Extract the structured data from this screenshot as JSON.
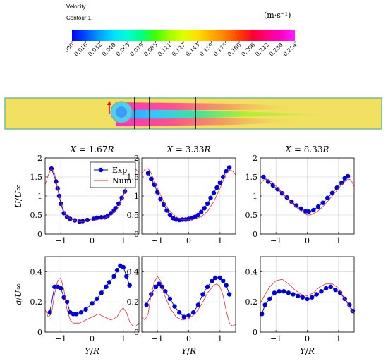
{
  "legend_box": {
    "title": "Velocity",
    "subtitle": "Contour 1",
    "unit": "(m·s⁻¹)",
    "colors": [
      "#0000ff",
      "#0050ff",
      "#00a0ff",
      "#00e0ff",
      "#00ffd0",
      "#00ff80",
      "#40ff00",
      "#a0ff00",
      "#e0ff00",
      "#ffe000",
      "#ffb000",
      "#ff8000",
      "#ff4000",
      "#ff0030",
      "#ff0080",
      "#ff00c0",
      "#ff20ff"
    ],
    "ticks": [
      "0.000",
      "0.016",
      "0.032",
      "0.048",
      "0.063",
      "0.079",
      "0.095",
      "0.111",
      "0.127",
      "0.143",
      "0.159",
      "0.175",
      "0.190",
      "0.206",
      "0.222",
      "0.238",
      "0.254"
    ]
  },
  "chart_data": [
    {
      "type": "line",
      "title": "X = 1.67R",
      "xlabel": "",
      "ylabel": "U/U∞",
      "xlim": [
        -1.5,
        1.5
      ],
      "ylim": [
        0,
        2
      ],
      "xticks": [
        -1,
        0,
        1
      ],
      "yticks": [
        0,
        0.5,
        1,
        1.5,
        2
      ],
      "grid": true,
      "legend": {
        "position": "top-right",
        "entries": [
          "Exp",
          "Num"
        ]
      },
      "series": [
        {
          "name": "Exp",
          "marker": "circle",
          "color": "#0000dd",
          "x": [
            -1.3,
            -1.15,
            -1.1,
            -1.05,
            -1.0,
            -0.9,
            -0.8,
            -0.7,
            -0.55,
            -0.4,
            -0.3,
            -0.15,
            0.05,
            0.15,
            0.3,
            0.4,
            0.5,
            0.6,
            0.7,
            0.75,
            0.85,
            0.95,
            1.05,
            1.1,
            1.15
          ],
          "y": [
            1.72,
            1.38,
            1.2,
            1.0,
            0.8,
            0.55,
            0.45,
            0.4,
            0.36,
            0.33,
            0.34,
            0.37,
            0.4,
            0.43,
            0.44,
            0.44,
            0.48,
            0.55,
            0.62,
            0.68,
            0.8,
            0.95,
            1.12,
            1.3,
            1.42
          ]
        },
        {
          "name": "Num",
          "color": "#e03030",
          "x": [
            -1.5,
            -1.4,
            -1.3,
            -1.2,
            -1.1,
            -1.0,
            -0.9,
            -0.8,
            -0.6,
            -0.4,
            -0.2,
            0,
            0.2,
            0.4,
            0.6,
            0.8,
            0.9,
            1.0,
            1.1,
            1.2,
            1.3,
            1.4,
            1.5
          ],
          "y": [
            1.3,
            1.55,
            1.72,
            1.6,
            1.2,
            0.85,
            0.6,
            0.45,
            0.37,
            0.33,
            0.33,
            0.35,
            0.38,
            0.42,
            0.5,
            0.65,
            0.8,
            1.0,
            1.25,
            1.5,
            1.67,
            1.7,
            1.62
          ]
        }
      ]
    },
    {
      "type": "line",
      "title": "X = 3.33R",
      "xlabel": "",
      "ylabel": "",
      "xlim": [
        -1.5,
        1.5
      ],
      "ylim": [
        0,
        2
      ],
      "xticks": [
        -1,
        0,
        1
      ],
      "yticks": [
        0,
        0.5,
        1,
        1.5,
        2
      ],
      "grid": true,
      "series": [
        {
          "name": "Exp",
          "marker": "circle",
          "color": "#0000dd",
          "x": [
            -1.3,
            -1.2,
            -1.1,
            -1.0,
            -0.9,
            -0.8,
            -0.7,
            -0.6,
            -0.5,
            -0.4,
            -0.3,
            -0.2,
            -0.1,
            0,
            0.1,
            0.2,
            0.3,
            0.4,
            0.5,
            0.6,
            0.7,
            0.8,
            0.9,
            1.0,
            1.1,
            1.2,
            1.3
          ],
          "y": [
            1.6,
            1.45,
            1.3,
            1.1,
            0.92,
            0.78,
            0.62,
            0.5,
            0.42,
            0.38,
            0.37,
            0.38,
            0.38,
            0.4,
            0.42,
            0.45,
            0.5,
            0.58,
            0.68,
            0.8,
            0.95,
            1.08,
            1.22,
            1.35,
            1.5,
            1.65,
            1.75
          ]
        },
        {
          "name": "Num",
          "color": "#e03030",
          "x": [
            -1.5,
            -1.4,
            -1.3,
            -1.2,
            -1.1,
            -1.0,
            -0.8,
            -0.6,
            -0.4,
            -0.2,
            0,
            0.2,
            0.4,
            0.6,
            0.8,
            1.0,
            1.1,
            1.2,
            1.3,
            1.4,
            1.5
          ],
          "y": [
            1.6,
            1.7,
            1.72,
            1.6,
            1.4,
            1.2,
            0.85,
            0.6,
            0.45,
            0.38,
            0.37,
            0.4,
            0.45,
            0.6,
            0.85,
            1.2,
            1.4,
            1.58,
            1.68,
            1.66,
            1.55
          ]
        }
      ]
    },
    {
      "type": "line",
      "title": "X = 8.33R",
      "xlabel": "",
      "ylabel": "",
      "xlim": [
        -1.5,
        1.5
      ],
      "ylim": [
        0,
        2
      ],
      "xticks": [
        -1,
        0,
        1
      ],
      "yticks": [
        0,
        0.5,
        1,
        1.5,
        2
      ],
      "grid": true,
      "series": [
        {
          "name": "Exp",
          "marker": "circle",
          "color": "#0000dd",
          "x": [
            -1.4,
            -1.25,
            -1.1,
            -0.95,
            -0.8,
            -0.65,
            -0.5,
            -0.35,
            -0.2,
            -0.05,
            0.05,
            0.2,
            0.35,
            0.5,
            0.65,
            0.8,
            0.95,
            1.1,
            1.2,
            1.3
          ],
          "y": [
            1.5,
            1.38,
            1.28,
            1.18,
            1.07,
            0.96,
            0.85,
            0.75,
            0.67,
            0.6,
            0.59,
            0.63,
            0.72,
            0.82,
            0.95,
            1.08,
            1.22,
            1.35,
            1.47,
            1.52
          ]
        },
        {
          "name": "Num",
          "color": "#e03030",
          "x": [
            -1.5,
            -1.4,
            -1.3,
            -1.1,
            -0.9,
            -0.7,
            -0.5,
            -0.3,
            -0.1,
            0,
            0.1,
            0.3,
            0.5,
            0.7,
            0.9,
            1.1,
            1.3,
            1.4,
            1.5
          ],
          "y": [
            1.32,
            1.42,
            1.45,
            1.35,
            1.18,
            1.0,
            0.82,
            0.67,
            0.55,
            0.5,
            0.5,
            0.58,
            0.72,
            0.9,
            1.1,
            1.3,
            1.45,
            1.42,
            1.25
          ]
        }
      ]
    },
    {
      "type": "line",
      "title": "",
      "xlabel": "Y/R",
      "ylabel": "q/U∞",
      "xlim": [
        -1.5,
        1.5
      ],
      "ylim": [
        0,
        0.5
      ],
      "xticks": [
        -1,
        0,
        1
      ],
      "yticks": [
        0,
        0.2,
        0.4
      ],
      "grid": true,
      "series": [
        {
          "name": "Exp",
          "marker": "circle",
          "color": "#0000dd",
          "x": [
            -1.35,
            -1.2,
            -1.1,
            -1.0,
            -0.9,
            -0.8,
            -0.7,
            -0.6,
            -0.5,
            -0.35,
            -0.2,
            0,
            0.15,
            0.3,
            0.45,
            0.55,
            0.7,
            0.8,
            0.9,
            1.0,
            1.1,
            1.2
          ],
          "y": [
            0.13,
            0.3,
            0.3,
            0.29,
            0.23,
            0.2,
            0.13,
            0.12,
            0.12,
            0.13,
            0.15,
            0.19,
            0.22,
            0.26,
            0.3,
            0.33,
            0.37,
            0.41,
            0.44,
            0.43,
            0.37,
            0.31
          ]
        },
        {
          "name": "Num",
          "color": "#e03030",
          "x": [
            -1.5,
            -1.4,
            -1.3,
            -1.2,
            -1.1,
            -1.0,
            -0.9,
            -0.8,
            -0.7,
            -0.6,
            -0.4,
            -0.2,
            0,
            0.2,
            0.4,
            0.6,
            0.8,
            0.9,
            1.0,
            1.1,
            1.2,
            1.3,
            1.4,
            1.5
          ],
          "y": [
            0.15,
            0.1,
            0.12,
            0.25,
            0.34,
            0.36,
            0.28,
            0.15,
            0.08,
            0.06,
            0.06,
            0.08,
            0.1,
            0.12,
            0.1,
            0.08,
            0.1,
            0.14,
            0.16,
            0.13,
            0.07,
            0.04,
            0.04,
            0.06
          ]
        }
      ]
    },
    {
      "type": "line",
      "title": "",
      "xlabel": "Y/R",
      "ylabel": "",
      "xlim": [
        -1.5,
        1.5
      ],
      "ylim": [
        0,
        0.5
      ],
      "xticks": [
        -1,
        0,
        1
      ],
      "yticks": [
        0,
        0.2,
        0.4
      ],
      "grid": true,
      "series": [
        {
          "name": "Exp",
          "marker": "circle",
          "color": "#0000dd",
          "x": [
            -1.35,
            -1.2,
            -1.05,
            -0.95,
            -0.85,
            -0.75,
            -0.6,
            -0.45,
            -0.3,
            -0.15,
            0,
            0.15,
            0.3,
            0.45,
            0.6,
            0.75,
            0.85,
            1.0,
            1.1,
            1.2,
            1.3
          ],
          "y": [
            0.18,
            0.25,
            0.3,
            0.32,
            0.3,
            0.27,
            0.22,
            0.17,
            0.13,
            0.1,
            0.11,
            0.13,
            0.18,
            0.25,
            0.3,
            0.34,
            0.36,
            0.36,
            0.34,
            0.31,
            0.25
          ]
        },
        {
          "name": "Num",
          "color": "#e03030",
          "x": [
            -1.5,
            -1.4,
            -1.3,
            -1.2,
            -1.1,
            -1.0,
            -0.9,
            -0.8,
            -0.6,
            -0.4,
            -0.2,
            0,
            0.2,
            0.4,
            0.6,
            0.8,
            0.9,
            1.0,
            1.1,
            1.2,
            1.3,
            1.4,
            1.5
          ],
          "y": [
            0.1,
            0.08,
            0.12,
            0.25,
            0.33,
            0.37,
            0.34,
            0.26,
            0.16,
            0.1,
            0.08,
            0.09,
            0.12,
            0.18,
            0.26,
            0.31,
            0.32,
            0.3,
            0.24,
            0.14,
            0.06,
            0.04,
            0.05
          ]
        }
      ]
    },
    {
      "type": "line",
      "title": "",
      "xlabel": "Y/R",
      "ylabel": "",
      "xlim": [
        -1.5,
        1.5
      ],
      "ylim": [
        0,
        0.5
      ],
      "xticks": [
        -1,
        0,
        1
      ],
      "yticks": [
        0,
        0.2,
        0.4
      ],
      "grid": true,
      "series": [
        {
          "name": "Exp",
          "marker": "circle",
          "color": "#0000dd",
          "x": [
            -1.45,
            -1.35,
            -1.2,
            -1.05,
            -0.9,
            -0.75,
            -0.6,
            -0.45,
            -0.3,
            -0.15,
            0,
            0.15,
            0.3,
            0.45,
            0.6,
            0.75,
            0.9,
            1.05,
            1.2,
            1.35,
            1.45
          ],
          "y": [
            0.12,
            0.18,
            0.22,
            0.26,
            0.27,
            0.27,
            0.26,
            0.25,
            0.24,
            0.23,
            0.22,
            0.23,
            0.25,
            0.27,
            0.29,
            0.3,
            0.28,
            0.26,
            0.22,
            0.18,
            0.14
          ]
        },
        {
          "name": "Num",
          "color": "#e03030",
          "x": [
            -1.5,
            -1.4,
            -1.2,
            -1.0,
            -0.8,
            -0.6,
            -0.4,
            -0.2,
            0,
            0.2,
            0.4,
            0.6,
            0.8,
            1.0,
            1.2,
            1.4,
            1.5
          ],
          "y": [
            0.19,
            0.23,
            0.3,
            0.34,
            0.35,
            0.32,
            0.28,
            0.25,
            0.24,
            0.26,
            0.3,
            0.32,
            0.32,
            0.29,
            0.22,
            0.15,
            0.12
          ]
        }
      ]
    }
  ]
}
